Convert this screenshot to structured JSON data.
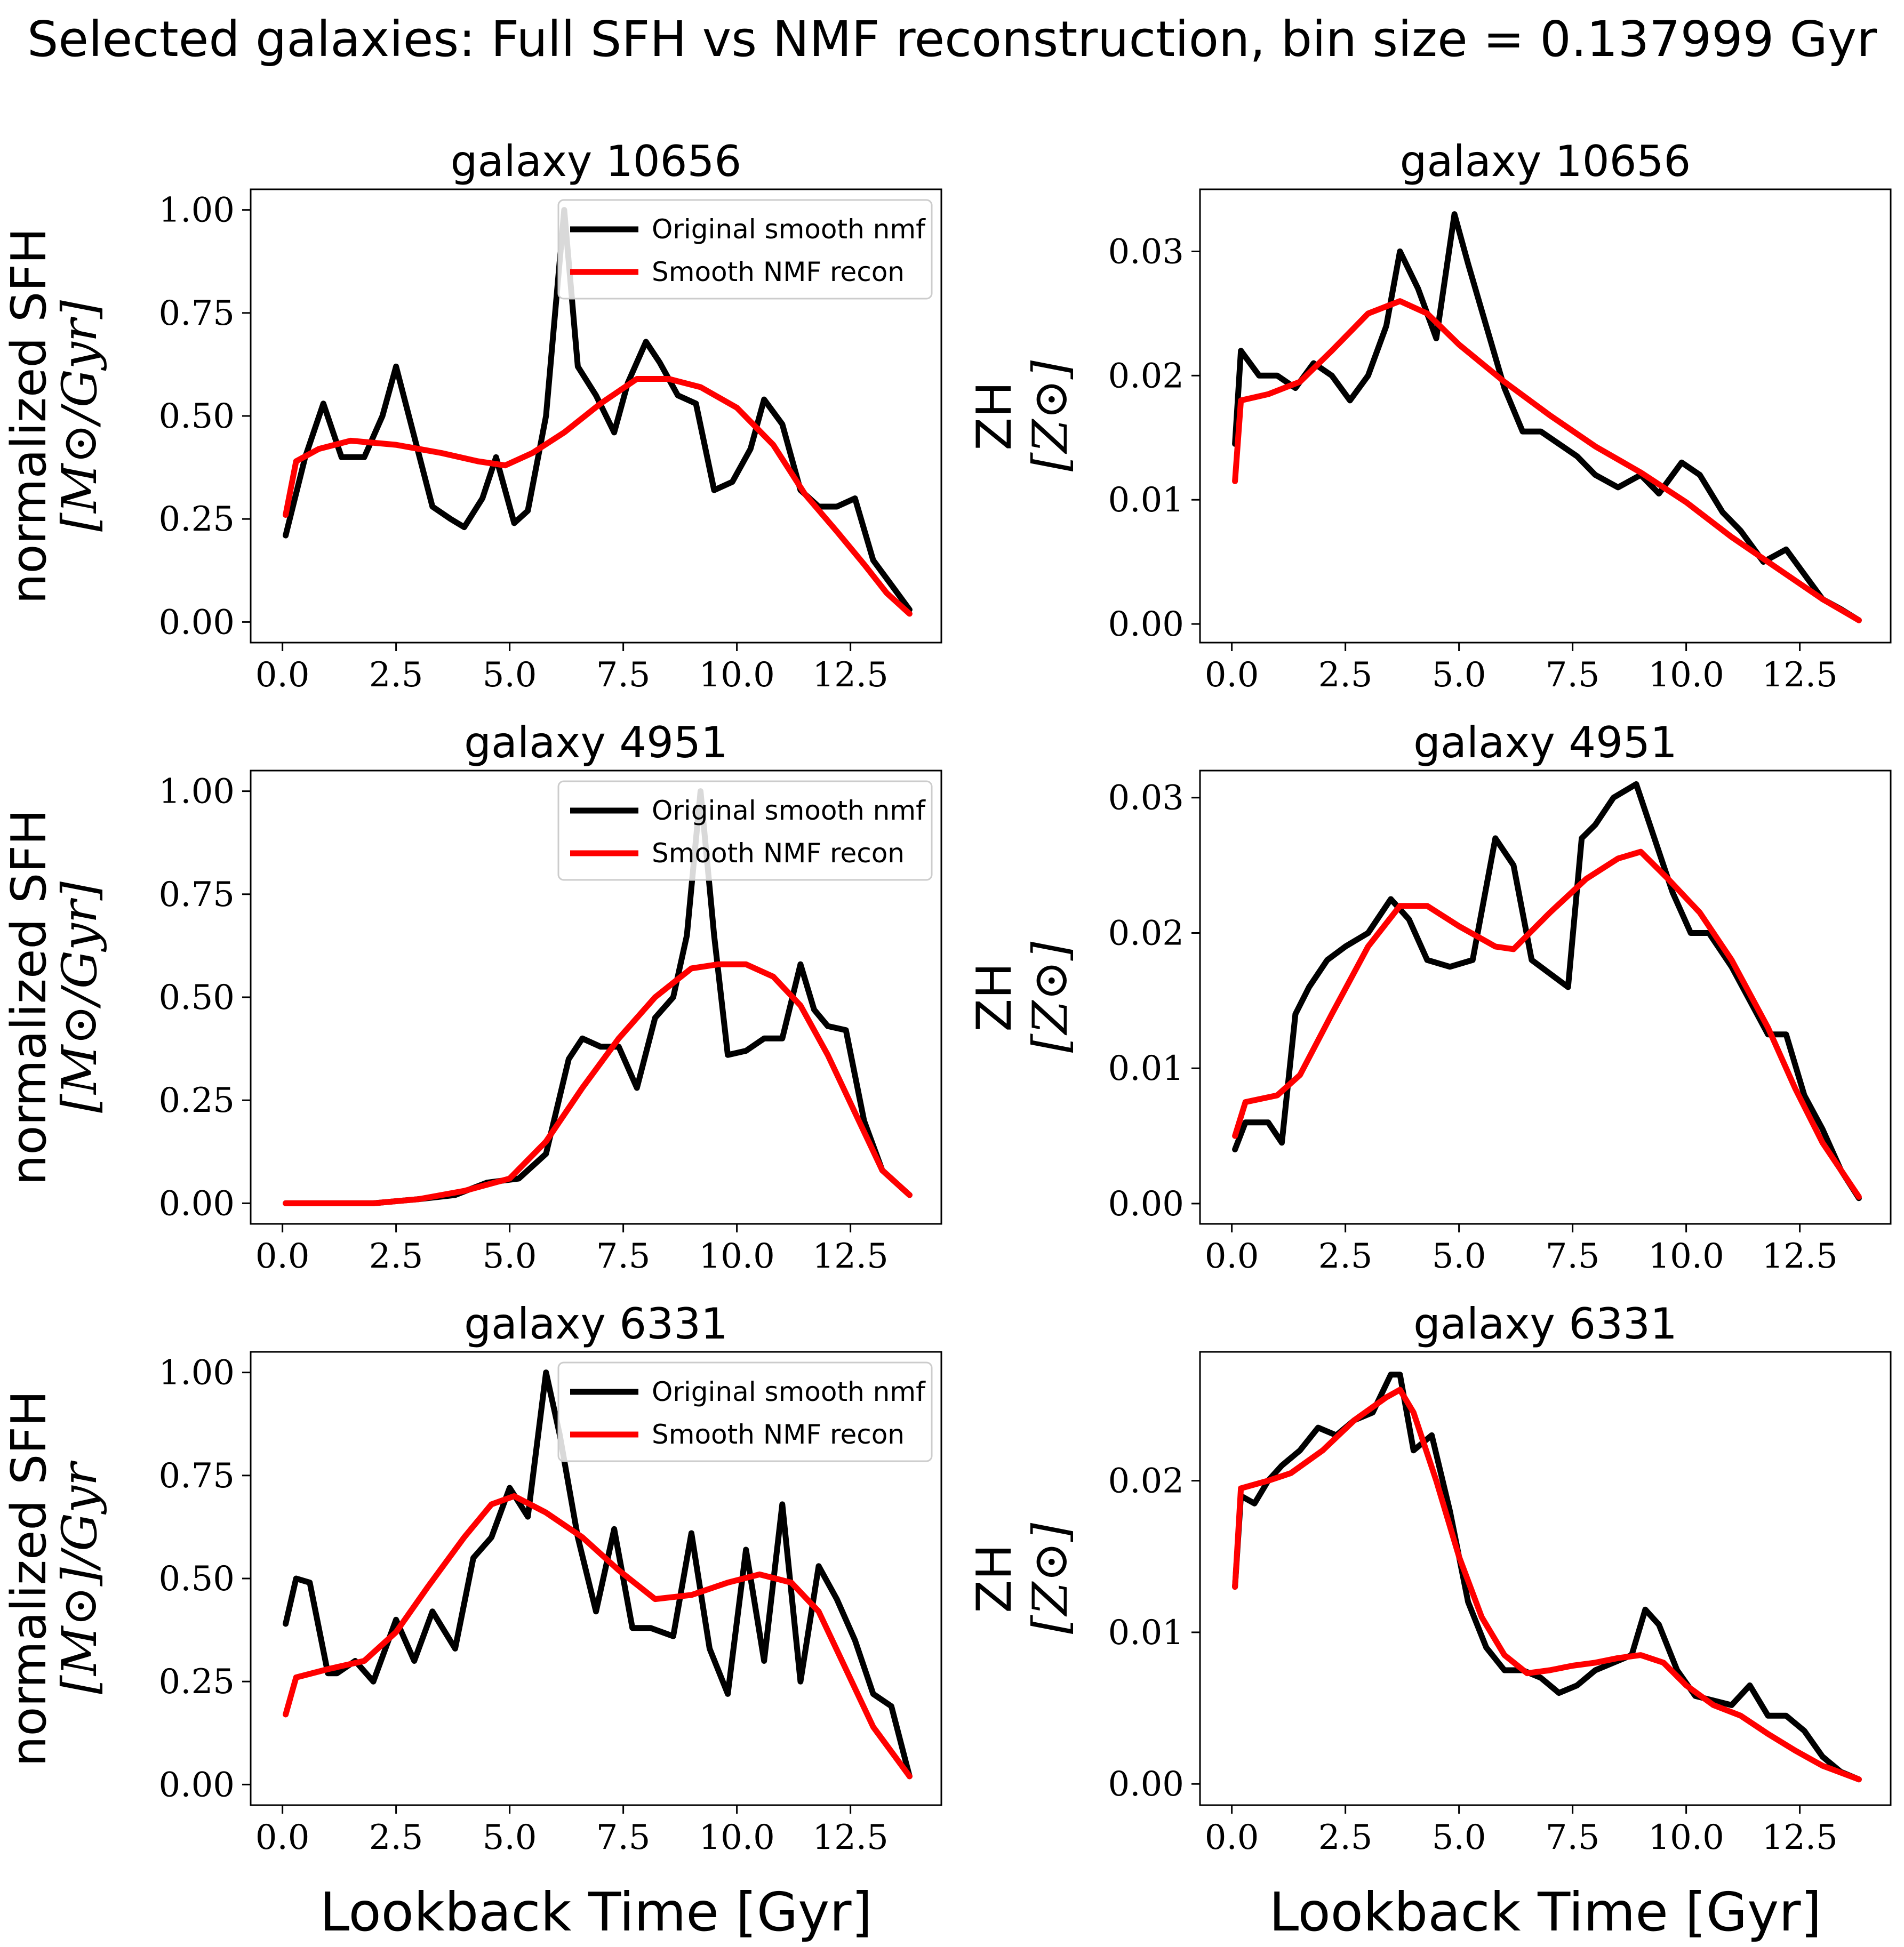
{
  "figure_title": "Selected galaxies: Full SFH vs NMF reconstruction, bin size = 0.137999 Gyr",
  "colors": {
    "original": "#000000",
    "recon": "#ff0000"
  },
  "chart_data": [
    {
      "type": "line",
      "title": "galaxy 10656",
      "ylabel": [
        "normalized SFH",
        "[M⊙/Gyr]"
      ],
      "xlabel": "",
      "xlim": [
        -0.7,
        14.5
      ],
      "ylim": [
        -0.05,
        1.05
      ],
      "xticks": [
        "0.0",
        "2.5",
        "5.0",
        "7.5",
        "10.0",
        "12.5"
      ],
      "yticks": [
        "0.00",
        "0.25",
        "0.50",
        "0.75",
        "1.00"
      ],
      "legend": {
        "position": "top-right",
        "entries": [
          "Original smooth nmf",
          "Smooth NMF recon"
        ]
      },
      "series": [
        {
          "name": "Original smooth nmf",
          "color": "#000000",
          "x": [
            0.07,
            0.5,
            0.9,
            1.3,
            1.8,
            2.2,
            2.5,
            2.9,
            3.3,
            3.7,
            4.0,
            4.4,
            4.7,
            5.1,
            5.4,
            5.8,
            6.2,
            6.5,
            6.9,
            7.3,
            7.6,
            8.0,
            8.3,
            8.7,
            9.1,
            9.5,
            9.9,
            10.3,
            10.6,
            11.0,
            11.4,
            11.8,
            12.2,
            12.6,
            13.0,
            13.4,
            13.8
          ],
          "y": [
            0.21,
            0.4,
            0.53,
            0.4,
            0.4,
            0.5,
            0.62,
            0.45,
            0.28,
            0.25,
            0.23,
            0.3,
            0.4,
            0.24,
            0.27,
            0.5,
            1.0,
            0.62,
            0.55,
            0.46,
            0.58,
            0.68,
            0.63,
            0.55,
            0.53,
            0.32,
            0.34,
            0.42,
            0.54,
            0.48,
            0.32,
            0.28,
            0.28,
            0.3,
            0.15,
            0.09,
            0.03
          ]
        },
        {
          "name": "Smooth NMF recon",
          "color": "#ff0000",
          "x": [
            0.07,
            0.3,
            0.8,
            1.5,
            2.5,
            3.5,
            4.3,
            4.9,
            5.5,
            6.2,
            7.0,
            7.8,
            8.5,
            9.2,
            10.0,
            10.8,
            11.5,
            12.2,
            12.8,
            13.3,
            13.8
          ],
          "y": [
            0.26,
            0.39,
            0.42,
            0.44,
            0.43,
            0.41,
            0.39,
            0.38,
            0.41,
            0.46,
            0.53,
            0.59,
            0.59,
            0.57,
            0.52,
            0.43,
            0.31,
            0.22,
            0.14,
            0.07,
            0.02
          ]
        }
      ]
    },
    {
      "type": "line",
      "title": "galaxy 10656",
      "ylabel": [
        "ZH",
        "[Z⊙]"
      ],
      "xlabel": "",
      "xlim": [
        -0.7,
        14.5
      ],
      "ylim": [
        -0.0015,
        0.035
      ],
      "xticks": [
        "0.0",
        "2.5",
        "5.0",
        "7.5",
        "10.0",
        "12.5"
      ],
      "yticks": [
        "0.00",
        "0.01",
        "0.02",
        "0.03"
      ],
      "legend": null,
      "series": [
        {
          "name": "Original smooth nmf",
          "color": "#000000",
          "x": [
            0.07,
            0.2,
            0.6,
            1.0,
            1.4,
            1.8,
            2.2,
            2.6,
            3.0,
            3.4,
            3.7,
            4.1,
            4.5,
            4.9,
            5.2,
            5.6,
            6.0,
            6.4,
            6.8,
            7.2,
            7.6,
            8.0,
            8.5,
            9.0,
            9.4,
            9.9,
            10.3,
            10.8,
            11.2,
            11.7,
            12.2,
            12.6,
            13.0,
            13.4,
            13.8
          ],
          "y": [
            0.0145,
            0.022,
            0.02,
            0.02,
            0.019,
            0.021,
            0.02,
            0.018,
            0.02,
            0.024,
            0.03,
            0.027,
            0.023,
            0.033,
            0.029,
            0.024,
            0.019,
            0.0155,
            0.0155,
            0.0145,
            0.0135,
            0.012,
            0.011,
            0.012,
            0.0105,
            0.013,
            0.012,
            0.009,
            0.0075,
            0.005,
            0.006,
            0.004,
            0.002,
            0.0012,
            0.0003
          ]
        },
        {
          "name": "Smooth NMF recon",
          "color": "#ff0000",
          "x": [
            0.07,
            0.2,
            0.8,
            1.5,
            2.2,
            3.0,
            3.7,
            4.3,
            5.0,
            6.0,
            7.0,
            8.0,
            9.0,
            10.0,
            11.0,
            12.0,
            13.0,
            13.8
          ],
          "y": [
            0.0115,
            0.018,
            0.0185,
            0.0195,
            0.022,
            0.025,
            0.026,
            0.025,
            0.0225,
            0.0195,
            0.0168,
            0.0143,
            0.0122,
            0.0098,
            0.007,
            0.0045,
            0.002,
            0.0003
          ]
        }
      ]
    },
    {
      "type": "line",
      "title": "galaxy 4951",
      "ylabel": [
        "normalized SFH",
        "[M⊙/Gyr]"
      ],
      "xlabel": "",
      "xlim": [
        -0.7,
        14.5
      ],
      "ylim": [
        -0.05,
        1.05
      ],
      "xticks": [
        "0.0",
        "2.5",
        "5.0",
        "7.5",
        "10.0",
        "12.5"
      ],
      "yticks": [
        "0.00",
        "0.25",
        "0.50",
        "0.75",
        "1.00"
      ],
      "legend": {
        "position": "top-right",
        "entries": [
          "Original smooth nmf",
          "Smooth NMF recon"
        ]
      },
      "series": [
        {
          "name": "Original smooth nmf",
          "color": "#000000",
          "x": [
            0.07,
            1.0,
            2.0,
            3.0,
            3.8,
            4.5,
            5.2,
            5.8,
            6.3,
            6.6,
            7.0,
            7.4,
            7.8,
            8.2,
            8.6,
            8.9,
            9.2,
            9.5,
            9.8,
            10.2,
            10.6,
            11.0,
            11.4,
            11.7,
            12.0,
            12.4,
            12.8,
            13.2,
            13.8
          ],
          "y": [
            0.0,
            0.0,
            0.0,
            0.01,
            0.02,
            0.05,
            0.06,
            0.12,
            0.35,
            0.4,
            0.38,
            0.38,
            0.28,
            0.45,
            0.5,
            0.65,
            1.0,
            0.65,
            0.36,
            0.37,
            0.4,
            0.4,
            0.58,
            0.47,
            0.43,
            0.42,
            0.2,
            0.08,
            0.02
          ]
        },
        {
          "name": "Smooth NMF recon",
          "color": "#ff0000",
          "x": [
            0.07,
            1.0,
            2.0,
            3.0,
            4.0,
            5.0,
            5.8,
            6.6,
            7.4,
            8.2,
            9.0,
            9.6,
            10.2,
            10.8,
            11.4,
            12.0,
            12.6,
            13.2,
            13.8
          ],
          "y": [
            0.0,
            0.0,
            0.0,
            0.01,
            0.03,
            0.06,
            0.15,
            0.28,
            0.4,
            0.5,
            0.57,
            0.58,
            0.58,
            0.55,
            0.48,
            0.36,
            0.22,
            0.08,
            0.02
          ]
        }
      ]
    },
    {
      "type": "line",
      "title": "galaxy 4951",
      "ylabel": [
        "ZH",
        "[Z⊙]"
      ],
      "xlabel": "",
      "xlim": [
        -0.7,
        14.5
      ],
      "ylim": [
        -0.0015,
        0.032
      ],
      "xticks": [
        "0.0",
        "2.5",
        "5.0",
        "7.5",
        "10.0",
        "12.5"
      ],
      "yticks": [
        "0.00",
        "0.01",
        "0.02",
        "0.03"
      ],
      "legend": null,
      "series": [
        {
          "name": "Original smooth nmf",
          "color": "#000000",
          "x": [
            0.07,
            0.3,
            0.8,
            1.1,
            1.4,
            1.7,
            2.1,
            2.5,
            3.0,
            3.5,
            3.9,
            4.3,
            4.8,
            5.3,
            5.8,
            6.2,
            6.6,
            7.0,
            7.4,
            7.7,
            8.0,
            8.4,
            8.9,
            9.3,
            9.7,
            10.1,
            10.5,
            11.0,
            11.4,
            11.8,
            12.2,
            12.6,
            13.0,
            13.4,
            13.8
          ],
          "y": [
            0.004,
            0.006,
            0.006,
            0.0045,
            0.014,
            0.016,
            0.018,
            0.019,
            0.02,
            0.0225,
            0.021,
            0.018,
            0.0175,
            0.018,
            0.027,
            0.025,
            0.018,
            0.017,
            0.016,
            0.027,
            0.028,
            0.03,
            0.031,
            0.027,
            0.023,
            0.02,
            0.02,
            0.0175,
            0.015,
            0.0125,
            0.0125,
            0.008,
            0.0055,
            0.0025,
            0.0004
          ]
        },
        {
          "name": "Smooth NMF recon",
          "color": "#ff0000",
          "x": [
            0.07,
            0.3,
            1.0,
            1.5,
            2.2,
            3.0,
            3.7,
            4.3,
            5.0,
            5.8,
            6.2,
            7.0,
            7.8,
            8.5,
            9.0,
            9.6,
            10.3,
            11.0,
            11.8,
            12.4,
            13.0,
            13.8
          ],
          "y": [
            0.005,
            0.0075,
            0.008,
            0.0095,
            0.014,
            0.019,
            0.022,
            0.022,
            0.0205,
            0.019,
            0.0188,
            0.0215,
            0.024,
            0.0255,
            0.026,
            0.024,
            0.0215,
            0.018,
            0.013,
            0.0085,
            0.0045,
            0.0005
          ]
        }
      ]
    },
    {
      "type": "line",
      "title": "galaxy 6331",
      "ylabel": [
        "normalized SFH",
        "[M⊙]/Gyr"
      ],
      "xlabel": "Lookback Time [Gyr]",
      "xlim": [
        -0.7,
        14.5
      ],
      "ylim": [
        -0.05,
        1.05
      ],
      "xticks": [
        "0.0",
        "2.5",
        "5.0",
        "7.5",
        "10.0",
        "12.5"
      ],
      "yticks": [
        "0.00",
        "0.25",
        "0.50",
        "0.75",
        "1.00"
      ],
      "legend": {
        "position": "top-right",
        "entries": [
          "Original smooth nmf",
          "Smooth NMF recon"
        ]
      },
      "series": [
        {
          "name": "Original smooth nmf",
          "color": "#000000",
          "x": [
            0.07,
            0.3,
            0.6,
            1.0,
            1.2,
            1.6,
            2.0,
            2.5,
            2.9,
            3.3,
            3.8,
            4.2,
            4.6,
            5.0,
            5.4,
            5.8,
            6.1,
            6.5,
            6.9,
            7.3,
            7.7,
            8.1,
            8.6,
            9.0,
            9.4,
            9.8,
            10.2,
            10.6,
            11.0,
            11.4,
            11.8,
            12.2,
            12.6,
            13.0,
            13.4,
            13.8
          ],
          "y": [
            0.39,
            0.5,
            0.49,
            0.27,
            0.27,
            0.3,
            0.25,
            0.4,
            0.3,
            0.42,
            0.33,
            0.55,
            0.6,
            0.72,
            0.65,
            1.0,
            0.85,
            0.6,
            0.42,
            0.62,
            0.38,
            0.38,
            0.36,
            0.61,
            0.33,
            0.22,
            0.57,
            0.3,
            0.68,
            0.25,
            0.53,
            0.45,
            0.35,
            0.22,
            0.19,
            0.02
          ]
        },
        {
          "name": "Smooth NMF recon",
          "color": "#ff0000",
          "x": [
            0.07,
            0.3,
            1.0,
            1.8,
            2.5,
            3.2,
            4.0,
            4.6,
            5.1,
            5.8,
            6.6,
            7.4,
            8.2,
            9.0,
            9.8,
            10.5,
            11.2,
            11.8,
            12.4,
            13.0,
            13.8
          ],
          "y": [
            0.17,
            0.26,
            0.28,
            0.3,
            0.37,
            0.48,
            0.6,
            0.68,
            0.7,
            0.66,
            0.6,
            0.52,
            0.45,
            0.46,
            0.49,
            0.51,
            0.49,
            0.42,
            0.28,
            0.14,
            0.02
          ]
        }
      ]
    },
    {
      "type": "line",
      "title": "galaxy 6331",
      "ylabel": [
        "ZH",
        "[Z⊙]"
      ],
      "xlabel": "Lookback Time [Gyr]",
      "xlim": [
        -0.7,
        14.5
      ],
      "ylim": [
        -0.0014,
        0.0285
      ],
      "xticks": [
        "0.0",
        "2.5",
        "5.0",
        "7.5",
        "10.0",
        "12.5"
      ],
      "yticks": [
        "0.00",
        "0.01",
        "0.02"
      ],
      "legend": null,
      "series": [
        {
          "name": "Original smooth nmf",
          "color": "#000000",
          "x": [
            0.07,
            0.2,
            0.5,
            0.8,
            1.1,
            1.5,
            1.9,
            2.3,
            2.7,
            3.1,
            3.5,
            3.7,
            4.0,
            4.4,
            4.8,
            5.2,
            5.6,
            6.0,
            6.4,
            6.8,
            7.2,
            7.6,
            8.0,
            8.4,
            8.8,
            9.1,
            9.4,
            9.8,
            10.2,
            10.6,
            11.0,
            11.4,
            11.8,
            12.2,
            12.6,
            13.0,
            13.4,
            13.8
          ],
          "y": [
            0.013,
            0.019,
            0.0185,
            0.02,
            0.021,
            0.022,
            0.0235,
            0.023,
            0.024,
            0.0245,
            0.027,
            0.027,
            0.022,
            0.023,
            0.018,
            0.012,
            0.009,
            0.0075,
            0.0075,
            0.007,
            0.006,
            0.0065,
            0.0075,
            0.008,
            0.0085,
            0.0115,
            0.0105,
            0.0075,
            0.0058,
            0.0055,
            0.0052,
            0.0065,
            0.0045,
            0.0045,
            0.0035,
            0.0018,
            0.0008,
            0.0003
          ]
        },
        {
          "name": "Smooth NMF recon",
          "color": "#ff0000",
          "x": [
            0.07,
            0.2,
            0.8,
            1.3,
            2.0,
            2.7,
            3.4,
            3.7,
            4.0,
            4.5,
            5.0,
            5.5,
            6.0,
            6.5,
            7.0,
            7.5,
            8.0,
            8.5,
            9.0,
            9.5,
            10.0,
            10.6,
            11.2,
            11.8,
            12.4,
            13.0,
            13.8
          ],
          "y": [
            0.013,
            0.0195,
            0.02,
            0.0205,
            0.022,
            0.024,
            0.0255,
            0.026,
            0.0245,
            0.02,
            0.015,
            0.011,
            0.0085,
            0.0073,
            0.0075,
            0.0078,
            0.008,
            0.0083,
            0.0085,
            0.008,
            0.0065,
            0.0052,
            0.0045,
            0.0033,
            0.0022,
            0.0012,
            0.0003
          ]
        }
      ]
    }
  ]
}
